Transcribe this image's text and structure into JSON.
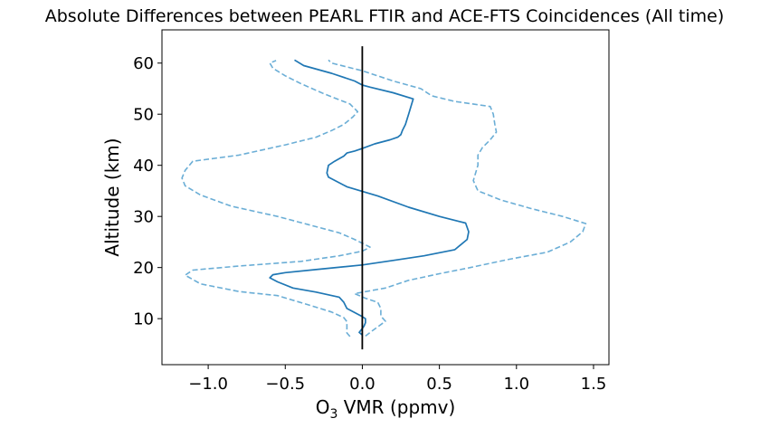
{
  "chart_data": {
    "type": "line",
    "title": "Absolute Differences between PEARL FTIR and ACE-FTS Coincidences (All time)",
    "xlabel_main": "O",
    "xlabel_sub": "3",
    "xlabel_rest": " VMR (ppmv)",
    "ylabel": "Altitude (km)",
    "xlim": [
      -1.3,
      1.6
    ],
    "ylim": [
      1,
      66.5
    ],
    "xticks": [
      -1.0,
      -0.5,
      0.0,
      0.5,
      1.0,
      1.5
    ],
    "xtick_labels": [
      "−1.0",
      "−0.5",
      "0.0",
      "0.5",
      "1.0",
      "1.5"
    ],
    "yticks": [
      10,
      20,
      30,
      40,
      50,
      60
    ],
    "ytick_labels": [
      "10",
      "20",
      "30",
      "40",
      "50",
      "60"
    ],
    "grid": false,
    "series": [
      {
        "role": "mean",
        "color": "#1f77b4",
        "style": "solid",
        "points": [
          [
            0.0,
            6.8
          ],
          [
            -0.02,
            7.3
          ],
          [
            0.01,
            8.5
          ],
          [
            0.02,
            9.2
          ],
          [
            0.02,
            10.0
          ],
          [
            0.0,
            10.4
          ],
          [
            -0.05,
            11.2
          ],
          [
            -0.1,
            12.0
          ],
          [
            -0.12,
            13.2
          ],
          [
            -0.15,
            14.2
          ],
          [
            -0.3,
            15.2
          ],
          [
            -0.45,
            16.0
          ],
          [
            -0.55,
            17.2
          ],
          [
            -0.6,
            18.0
          ],
          [
            -0.58,
            18.6
          ],
          [
            -0.5,
            19.0
          ],
          [
            -0.3,
            19.6
          ],
          [
            0.0,
            20.5
          ],
          [
            0.2,
            21.4
          ],
          [
            0.4,
            22.3
          ],
          [
            0.6,
            23.5
          ],
          [
            0.68,
            25.5
          ],
          [
            0.69,
            27.0
          ],
          [
            0.67,
            28.7
          ],
          [
            0.5,
            30.0
          ],
          [
            0.3,
            31.8
          ],
          [
            0.1,
            34.0
          ],
          [
            -0.1,
            35.8
          ],
          [
            -0.22,
            37.7
          ],
          [
            -0.23,
            38.5
          ],
          [
            -0.22,
            40.0
          ],
          [
            -0.18,
            40.8
          ],
          [
            -0.12,
            41.8
          ],
          [
            -0.1,
            42.4
          ],
          [
            -0.05,
            42.8
          ],
          [
            0.0,
            43.3
          ],
          [
            0.08,
            44.2
          ],
          [
            0.18,
            45.0
          ],
          [
            0.23,
            45.5
          ],
          [
            0.25,
            46.0
          ],
          [
            0.26,
            46.8
          ],
          [
            0.28,
            48.0
          ],
          [
            0.3,
            50.0
          ],
          [
            0.33,
            53.0
          ],
          [
            0.2,
            54.2
          ],
          [
            0.05,
            55.3
          ],
          [
            0.0,
            55.7
          ],
          [
            -0.05,
            56.5
          ],
          [
            -0.2,
            58.0
          ],
          [
            -0.38,
            59.5
          ],
          [
            -0.44,
            60.6
          ]
        ]
      },
      {
        "role": "mean minus std",
        "color": "#6baed6",
        "style": "dashed",
        "points": [
          [
            -0.08,
            6.5
          ],
          [
            -0.1,
            7.2
          ],
          [
            -0.1,
            8.2
          ],
          [
            -0.1,
            9.4
          ],
          [
            -0.12,
            10.2
          ],
          [
            -0.2,
            11.3
          ],
          [
            -0.35,
            12.7
          ],
          [
            -0.55,
            14.5
          ],
          [
            -0.8,
            15.3
          ],
          [
            -1.05,
            16.8
          ],
          [
            -1.15,
            18.5
          ],
          [
            -1.1,
            19.5
          ],
          [
            -0.8,
            20.3
          ],
          [
            -0.4,
            21.2
          ],
          [
            -0.15,
            22.3
          ],
          [
            0.0,
            23.2
          ],
          [
            0.05,
            24.0
          ],
          [
            -0.05,
            25.5
          ],
          [
            -0.15,
            26.8
          ],
          [
            -0.3,
            28.0
          ],
          [
            -0.55,
            30.0
          ],
          [
            -0.85,
            32.0
          ],
          [
            -1.05,
            34.2
          ],
          [
            -1.15,
            36.0
          ],
          [
            -1.17,
            37.5
          ],
          [
            -1.15,
            39.0
          ],
          [
            -1.1,
            40.8
          ],
          [
            -0.8,
            42.0
          ],
          [
            -0.5,
            44.0
          ],
          [
            -0.3,
            45.5
          ],
          [
            -0.2,
            46.8
          ],
          [
            -0.12,
            48.0
          ],
          [
            -0.06,
            49.5
          ],
          [
            -0.03,
            50.5
          ],
          [
            -0.08,
            52.0
          ],
          [
            -0.25,
            54.0
          ],
          [
            -0.4,
            56.0
          ],
          [
            -0.5,
            57.5
          ],
          [
            -0.58,
            59.0
          ],
          [
            -0.6,
            60.0
          ],
          [
            -0.56,
            60.5
          ]
        ]
      },
      {
        "role": "mean plus std",
        "color": "#6baed6",
        "style": "dashed",
        "points": [
          [
            0.02,
            6.6
          ],
          [
            0.05,
            7.3
          ],
          [
            0.1,
            8.4
          ],
          [
            0.15,
            9.5
          ],
          [
            0.12,
            10.5
          ],
          [
            0.12,
            12.0
          ],
          [
            0.1,
            13.2
          ],
          [
            0.02,
            14.0
          ],
          [
            -0.05,
            14.9
          ],
          [
            0.15,
            16.0
          ],
          [
            0.3,
            17.5
          ],
          [
            0.5,
            18.8
          ],
          [
            0.7,
            20.0
          ],
          [
            0.95,
            21.6
          ],
          [
            1.2,
            23.0
          ],
          [
            1.35,
            25.0
          ],
          [
            1.43,
            27.0
          ],
          [
            1.45,
            28.6
          ],
          [
            1.3,
            30.0
          ],
          [
            1.1,
            31.5
          ],
          [
            0.9,
            33.2
          ],
          [
            0.75,
            35.0
          ],
          [
            0.72,
            37.0
          ],
          [
            0.73,
            38.0
          ],
          [
            0.75,
            40.0
          ],
          [
            0.75,
            42.0
          ],
          [
            0.78,
            43.5
          ],
          [
            0.83,
            45.0
          ],
          [
            0.87,
            46.5
          ],
          [
            0.86,
            48.0
          ],
          [
            0.85,
            50.0
          ],
          [
            0.83,
            51.5
          ],
          [
            0.6,
            52.5
          ],
          [
            0.45,
            53.6
          ],
          [
            0.38,
            55.0
          ],
          [
            0.2,
            56.5
          ],
          [
            0.0,
            58.5
          ],
          [
            -0.2,
            60.0
          ],
          [
            -0.22,
            60.6
          ]
        ]
      },
      {
        "role": "zero line",
        "color": "#000000",
        "style": "solid",
        "points": [
          [
            0.0,
            4.0
          ],
          [
            0.0,
            63.3
          ]
        ]
      }
    ]
  }
}
